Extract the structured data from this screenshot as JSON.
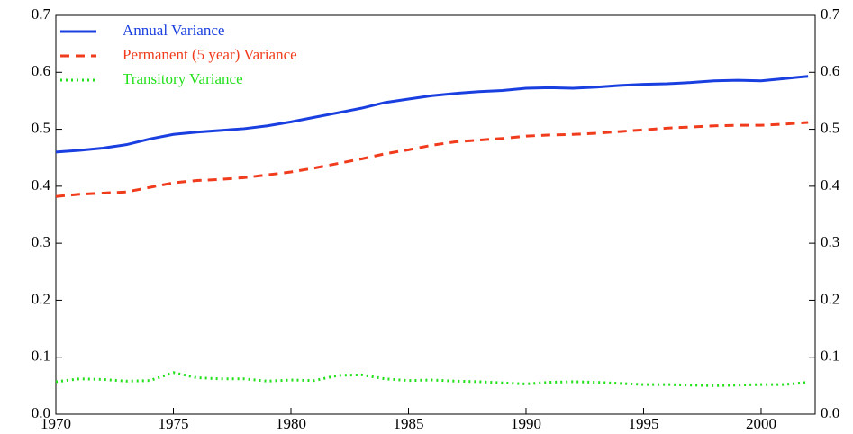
{
  "chart_data": {
    "type": "line",
    "x": [
      1970,
      1971,
      1972,
      1973,
      1974,
      1975,
      1976,
      1977,
      1978,
      1979,
      1980,
      1981,
      1982,
      1983,
      1984,
      1985,
      1986,
      1987,
      1988,
      1989,
      1990,
      1991,
      1992,
      1993,
      1994,
      1995,
      1996,
      1997,
      1998,
      1999,
      2000,
      2001,
      2002
    ],
    "series": [
      {
        "name": "Annual Variance",
        "color": "#1a3fe0",
        "dash": "solid",
        "values": [
          0.46,
          0.463,
          0.467,
          0.473,
          0.483,
          0.491,
          0.495,
          0.498,
          0.501,
          0.506,
          0.513,
          0.521,
          0.529,
          0.537,
          0.547,
          0.553,
          0.559,
          0.563,
          0.566,
          0.568,
          0.572,
          0.573,
          0.572,
          0.574,
          0.577,
          0.579,
          0.58,
          0.582,
          0.585,
          0.586,
          0.585,
          0.589,
          0.593
        ]
      },
      {
        "name": "Permanent (5 year) Variance",
        "color": "#f03c1c",
        "dash": "dashed",
        "values": [
          0.382,
          0.386,
          0.388,
          0.39,
          0.398,
          0.406,
          0.41,
          0.412,
          0.415,
          0.42,
          0.425,
          0.432,
          0.44,
          0.448,
          0.457,
          0.464,
          0.472,
          0.478,
          0.481,
          0.484,
          0.488,
          0.49,
          0.491,
          0.493,
          0.496,
          0.499,
          0.502,
          0.504,
          0.506,
          0.507,
          0.507,
          0.509,
          0.512
        ]
      },
      {
        "name": "Transitory Variance",
        "color": "#22e01a",
        "dash": "dotted",
        "values": [
          0.057,
          0.062,
          0.061,
          0.058,
          0.059,
          0.073,
          0.064,
          0.062,
          0.062,
          0.058,
          0.06,
          0.059,
          0.068,
          0.069,
          0.062,
          0.059,
          0.06,
          0.058,
          0.057,
          0.055,
          0.053,
          0.056,
          0.057,
          0.056,
          0.054,
          0.052,
          0.052,
          0.051,
          0.05,
          0.051,
          0.052,
          0.052,
          0.056
        ]
      }
    ],
    "xlim": [
      1970,
      2002.3
    ],
    "xticks": [
      1970,
      1975,
      1980,
      1985,
      1990,
      1995,
      2000
    ],
    "ylim": [
      0,
      0.7
    ],
    "yticks": [
      {
        "value": 0,
        "label": "0.0"
      },
      0.1,
      0.2,
      0.3,
      0.4,
      0.5,
      0.6,
      0.7
    ],
    "y2lim": [
      0,
      0.7
    ],
    "y2ticks": [
      {
        "value": 0,
        "label": "0.0"
      },
      0.1,
      0.2,
      0.3,
      0.4,
      0.5,
      0.6,
      0.7
    ],
    "legend": "upper left"
  }
}
